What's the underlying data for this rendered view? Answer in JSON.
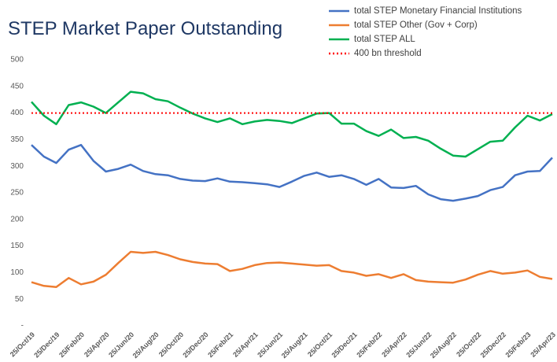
{
  "chart_data": {
    "type": "line",
    "title": "STEP Market Paper Outstanding",
    "categories": [
      "25/Oct/19",
      null,
      "25/Dec/19",
      null,
      "25/Feb/20",
      null,
      "25/Apr/20",
      null,
      "25/Jun/20",
      null,
      "25/Aug/20",
      null,
      "25/Oct/20",
      null,
      "25/Dec/20",
      null,
      "25/Feb/21",
      null,
      "25/Apr/21",
      null,
      "25/Jun/21",
      null,
      "25/Aug/21",
      null,
      "25/Oct/21",
      null,
      "25/Dec/21",
      null,
      "25/Feb/22",
      null,
      "25/Apr/22",
      null,
      "25/Jun/22",
      null,
      "25/Aug/22",
      null,
      "25/Oct/22",
      null,
      "25/Dec/22",
      null,
      "25/Feb/23",
      null,
      "25/Apr/23"
    ],
    "series": [
      {
        "name": "total STEP Monetary Financial Institutions",
        "color": "#4472c4",
        "values": [
          340,
          318,
          306,
          331,
          340,
          310,
          290,
          295,
          303,
          291,
          285,
          283,
          276,
          273,
          272,
          277,
          271,
          270,
          268,
          266,
          261,
          271,
          282,
          288,
          280,
          283,
          276,
          265,
          276,
          260,
          259,
          263,
          247,
          238,
          235,
          239,
          244,
          255,
          261,
          283,
          290,
          291,
          316
        ]
      },
      {
        "name": "total STEP Other (Gov + Corp)",
        "color": "#ed7d31",
        "values": [
          82,
          75,
          73,
          90,
          78,
          83,
          96,
          118,
          139,
          137,
          139,
          133,
          125,
          120,
          117,
          116,
          103,
          107,
          114,
          118,
          119,
          117,
          115,
          113,
          114,
          103,
          100,
          94,
          97,
          90,
          97,
          86,
          83,
          82,
          81,
          87,
          96,
          103,
          98,
          100,
          104,
          92,
          88
        ]
      },
      {
        "name": "total STEP ALL",
        "color": "#00b050",
        "values": [
          421,
          395,
          379,
          415,
          420,
          412,
          400,
          420,
          440,
          437,
          426,
          422,
          410,
          399,
          390,
          383,
          390,
          379,
          384,
          387,
          385,
          381,
          390,
          399,
          400,
          380,
          380,
          366,
          357,
          369,
          353,
          355,
          348,
          333,
          320,
          318,
          332,
          346,
          348,
          373,
          395,
          386,
          398
        ]
      },
      {
        "name": "400 bn threshold",
        "color": "#ff0000",
        "dash": "dotted",
        "values": [
          400,
          400,
          400,
          400,
          400,
          400,
          400,
          400,
          400,
          400,
          400,
          400,
          400,
          400,
          400,
          400,
          400,
          400,
          400,
          400,
          400,
          400,
          400,
          400,
          400,
          400,
          400,
          400,
          400,
          400,
          400,
          400,
          400,
          400,
          400,
          400,
          400,
          400,
          400,
          400,
          400,
          400,
          400
        ]
      }
    ],
    "ylim": [
      0,
      500
    ],
    "yticks": [
      {
        "value": 0,
        "label": "-"
      },
      50,
      100,
      150,
      200,
      250,
      300,
      350,
      400,
      450,
      500
    ],
    "grid": false,
    "legend": "top-right"
  }
}
